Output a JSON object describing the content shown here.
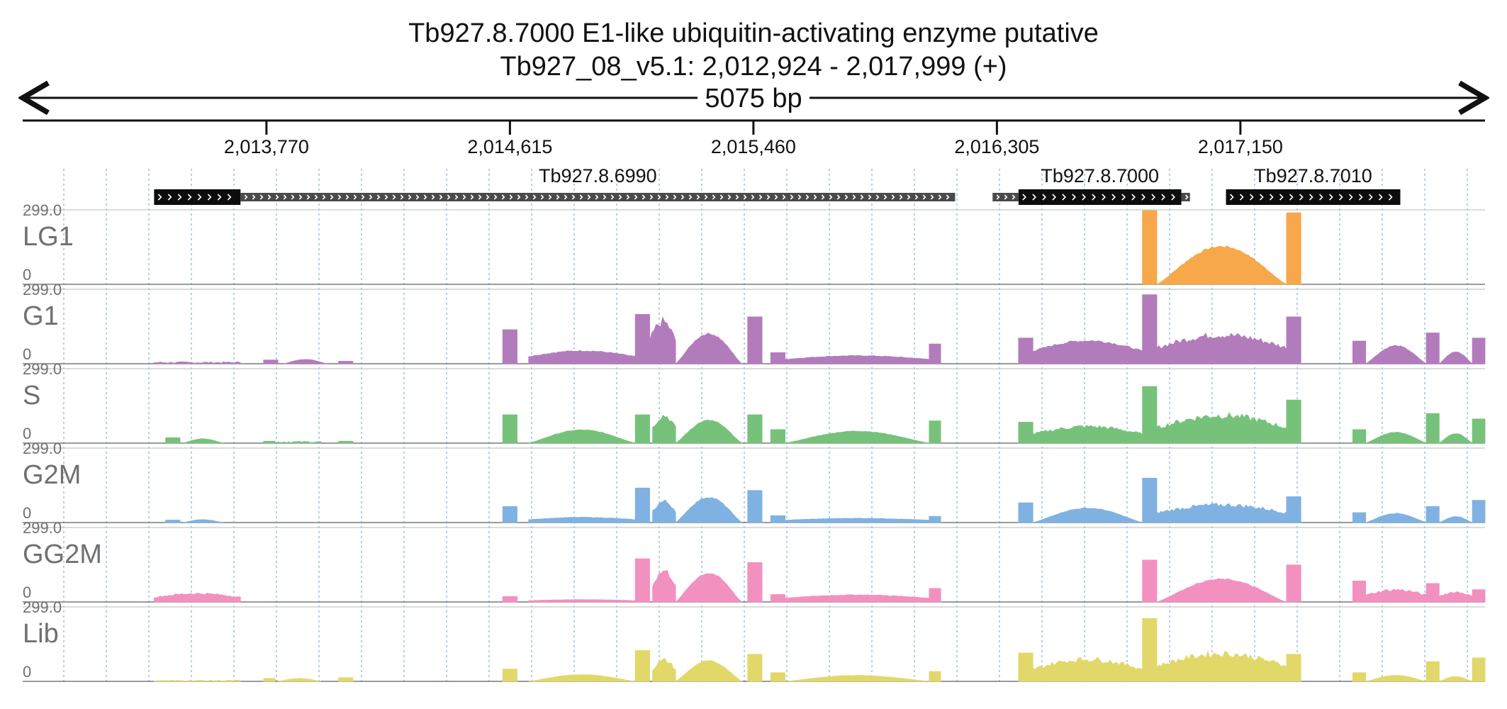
{
  "title_line1": "Tb927.8.7000  E1-like ubiquitin-activating enzyme  putative",
  "title_line2": "Tb927_08_v5.1: 2,012,924 - 2,017,999 (+)",
  "span_label": "5075 bp",
  "chart_data": {
    "type": "area",
    "chromosome": "Tb927_08_v5.1",
    "region_start": 2012924,
    "region_end": 2017999,
    "strand": "+",
    "xlim": [
      2012924,
      2017999
    ],
    "ylim": [
      0,
      299.0
    ],
    "y_max_label": "299.0",
    "y_min_label": "0",
    "x_ticks": [
      2013770,
      2014615,
      2015460,
      2016305,
      2017150
    ],
    "x_tick_labels": [
      "2,013,770",
      "2,014,615",
      "2,015,460",
      "2,016,305",
      "2,017,150"
    ],
    "grid": "vertical dotted lines",
    "genes": [
      {
        "name": "",
        "start": 2013380,
        "end": 2013680,
        "strand": "+",
        "feature": "cds"
      },
      {
        "name": "Tb927.8.6990",
        "start": 2013680,
        "end": 2016160,
        "strand": "+",
        "feature": "utr"
      },
      {
        "name": "Tb927.8.7000",
        "start": 2016290,
        "end": 2016380,
        "strand": "+",
        "feature": "utr"
      },
      {
        "name": "Tb927.8.7000",
        "start": 2016380,
        "end": 2016945,
        "strand": "+",
        "feature": "cds",
        "label": true
      },
      {
        "name": "",
        "start": 2016945,
        "end": 2016975,
        "strand": "+",
        "feature": "utr"
      },
      {
        "name": "Tb927.8.7010",
        "start": 2017100,
        "end": 2017705,
        "strand": "+",
        "feature": "cds",
        "label": true
      }
    ],
    "tracks": [
      {
        "name": "LG1",
        "color": "#f7a84a",
        "segments": [
          {
            "start": 2016810,
            "end": 2016860,
            "peak": 299,
            "shape": "flat"
          },
          {
            "start": 2016860,
            "end": 2017310,
            "peak": 158,
            "shape": "hump"
          },
          {
            "start": 2017310,
            "end": 2017360,
            "peak": 290,
            "shape": "flat"
          }
        ]
      },
      {
        "name": "G1",
        "color": "#b27cbc",
        "segments": [
          {
            "start": 2013380,
            "end": 2013680,
            "peak": 8,
            "shape": "noise"
          },
          {
            "start": 2013760,
            "end": 2013810,
            "peak": 15,
            "shape": "flat"
          },
          {
            "start": 2013830,
            "end": 2013980,
            "peak": 18,
            "shape": "hump"
          },
          {
            "start": 2014020,
            "end": 2014070,
            "peak": 10,
            "shape": "flat"
          },
          {
            "start": 2014590,
            "end": 2014640,
            "peak": 138,
            "shape": "flat"
          },
          {
            "start": 2014680,
            "end": 2015050,
            "peak": 55,
            "shape": "plateau"
          },
          {
            "start": 2015050,
            "end": 2015100,
            "peak": 200,
            "shape": "flat"
          },
          {
            "start": 2015100,
            "end": 2015190,
            "peak": 190,
            "shape": "ragged"
          },
          {
            "start": 2015190,
            "end": 2015420,
            "peak": 125,
            "shape": "hump"
          },
          {
            "start": 2015440,
            "end": 2015490,
            "peak": 190,
            "shape": "flat"
          },
          {
            "start": 2015520,
            "end": 2015570,
            "peak": 45,
            "shape": "flat"
          },
          {
            "start": 2015570,
            "end": 2016070,
            "peak": 34,
            "shape": "plateau"
          },
          {
            "start": 2016070,
            "end": 2016110,
            "peak": 80,
            "shape": "flat"
          },
          {
            "start": 2016380,
            "end": 2016430,
            "peak": 104,
            "shape": "flat"
          },
          {
            "start": 2016430,
            "end": 2016810,
            "peak": 98,
            "shape": "plateau"
          },
          {
            "start": 2016810,
            "end": 2016860,
            "peak": 280,
            "shape": "flat"
          },
          {
            "start": 2016860,
            "end": 2017310,
            "peak": 130,
            "shape": "ragged"
          },
          {
            "start": 2017310,
            "end": 2017360,
            "peak": 190,
            "shape": "flat"
          },
          {
            "start": 2017540,
            "end": 2017585,
            "peak": 92,
            "shape": "flat"
          },
          {
            "start": 2017585,
            "end": 2017795,
            "peak": 75,
            "shape": "hump"
          },
          {
            "start": 2017795,
            "end": 2017840,
            "peak": 125,
            "shape": "flat"
          },
          {
            "start": 2017840,
            "end": 2017955,
            "peak": 50,
            "shape": "hump"
          },
          {
            "start": 2017955,
            "end": 2017999,
            "peak": 104,
            "shape": "flat"
          }
        ]
      },
      {
        "name": "S",
        "color": "#77c27a",
        "segments": [
          {
            "start": 2013420,
            "end": 2013470,
            "peak": 22,
            "shape": "flat"
          },
          {
            "start": 2013480,
            "end": 2013620,
            "peak": 18,
            "shape": "hump"
          },
          {
            "start": 2013760,
            "end": 2013800,
            "peak": 8,
            "shape": "flat"
          },
          {
            "start": 2013810,
            "end": 2013960,
            "peak": 8,
            "shape": "noise"
          },
          {
            "start": 2014020,
            "end": 2014070,
            "peak": 8,
            "shape": "flat"
          },
          {
            "start": 2014590,
            "end": 2014640,
            "peak": 115,
            "shape": "flat"
          },
          {
            "start": 2014680,
            "end": 2015050,
            "peak": 55,
            "shape": "hump"
          },
          {
            "start": 2015050,
            "end": 2015100,
            "peak": 115,
            "shape": "flat"
          },
          {
            "start": 2015110,
            "end": 2015190,
            "peak": 125,
            "shape": "ragged"
          },
          {
            "start": 2015190,
            "end": 2015420,
            "peak": 95,
            "shape": "hump"
          },
          {
            "start": 2015440,
            "end": 2015490,
            "peak": 115,
            "shape": "flat"
          },
          {
            "start": 2015520,
            "end": 2015570,
            "peak": 55,
            "shape": "flat"
          },
          {
            "start": 2015570,
            "end": 2016070,
            "peak": 50,
            "shape": "hump"
          },
          {
            "start": 2016070,
            "end": 2016110,
            "peak": 90,
            "shape": "flat"
          },
          {
            "start": 2016380,
            "end": 2016430,
            "peak": 85,
            "shape": "flat"
          },
          {
            "start": 2016430,
            "end": 2016810,
            "peak": 75,
            "shape": "ragged"
          },
          {
            "start": 2016810,
            "end": 2016860,
            "peak": 230,
            "shape": "flat"
          },
          {
            "start": 2016860,
            "end": 2017310,
            "peak": 125,
            "shape": "ragged"
          },
          {
            "start": 2017310,
            "end": 2017360,
            "peak": 175,
            "shape": "flat"
          },
          {
            "start": 2017540,
            "end": 2017585,
            "peak": 55,
            "shape": "flat"
          },
          {
            "start": 2017585,
            "end": 2017795,
            "peak": 45,
            "shape": "hump"
          },
          {
            "start": 2017795,
            "end": 2017840,
            "peak": 120,
            "shape": "flat"
          },
          {
            "start": 2017840,
            "end": 2017955,
            "peak": 40,
            "shape": "hump"
          },
          {
            "start": 2017955,
            "end": 2017999,
            "peak": 98,
            "shape": "flat"
          }
        ]
      },
      {
        "name": "G2M",
        "color": "#7fb2e2",
        "segments": [
          {
            "start": 2013420,
            "end": 2013470,
            "peak": 10,
            "shape": "flat"
          },
          {
            "start": 2013480,
            "end": 2013620,
            "peak": 12,
            "shape": "hump"
          },
          {
            "start": 2014590,
            "end": 2014640,
            "peak": 65,
            "shape": "flat"
          },
          {
            "start": 2014680,
            "end": 2015050,
            "peak": 22,
            "shape": "plateau"
          },
          {
            "start": 2015050,
            "end": 2015100,
            "peak": 140,
            "shape": "flat"
          },
          {
            "start": 2015110,
            "end": 2015190,
            "peak": 95,
            "shape": "ragged"
          },
          {
            "start": 2015190,
            "end": 2015420,
            "peak": 105,
            "shape": "hump"
          },
          {
            "start": 2015440,
            "end": 2015490,
            "peak": 130,
            "shape": "flat"
          },
          {
            "start": 2015520,
            "end": 2015570,
            "peak": 28,
            "shape": "flat"
          },
          {
            "start": 2015570,
            "end": 2016070,
            "peak": 18,
            "shape": "plateau"
          },
          {
            "start": 2016070,
            "end": 2016110,
            "peak": 25,
            "shape": "flat"
          },
          {
            "start": 2016380,
            "end": 2016430,
            "peak": 80,
            "shape": "flat"
          },
          {
            "start": 2016430,
            "end": 2016810,
            "peak": 60,
            "shape": "hump"
          },
          {
            "start": 2016810,
            "end": 2016860,
            "peak": 180,
            "shape": "flat"
          },
          {
            "start": 2016860,
            "end": 2017310,
            "peak": 80,
            "shape": "ragged"
          },
          {
            "start": 2017310,
            "end": 2017360,
            "peak": 105,
            "shape": "flat"
          },
          {
            "start": 2017540,
            "end": 2017585,
            "peak": 40,
            "shape": "flat"
          },
          {
            "start": 2017585,
            "end": 2017795,
            "peak": 38,
            "shape": "hump"
          },
          {
            "start": 2017795,
            "end": 2017840,
            "peak": 65,
            "shape": "flat"
          },
          {
            "start": 2017840,
            "end": 2017955,
            "peak": 25,
            "shape": "hump"
          },
          {
            "start": 2017955,
            "end": 2017999,
            "peak": 90,
            "shape": "flat"
          }
        ]
      },
      {
        "name": "GG2M",
        "color": "#f291bf",
        "segments": [
          {
            "start": 2013380,
            "end": 2013680,
            "peak": 38,
            "shape": "ragged"
          },
          {
            "start": 2014590,
            "end": 2014640,
            "peak": 22,
            "shape": "flat"
          },
          {
            "start": 2014680,
            "end": 2015050,
            "peak": 10,
            "shape": "plateau"
          },
          {
            "start": 2015050,
            "end": 2015100,
            "peak": 175,
            "shape": "flat"
          },
          {
            "start": 2015110,
            "end": 2015190,
            "peak": 140,
            "shape": "ragged"
          },
          {
            "start": 2015190,
            "end": 2015420,
            "peak": 120,
            "shape": "hump"
          },
          {
            "start": 2015440,
            "end": 2015490,
            "peak": 160,
            "shape": "flat"
          },
          {
            "start": 2015520,
            "end": 2015570,
            "peak": 30,
            "shape": "flat"
          },
          {
            "start": 2015570,
            "end": 2016070,
            "peak": 30,
            "shape": "plateau"
          },
          {
            "start": 2016070,
            "end": 2016110,
            "peak": 55,
            "shape": "flat"
          },
          {
            "start": 2016810,
            "end": 2016860,
            "peak": 170,
            "shape": "flat"
          },
          {
            "start": 2016860,
            "end": 2017310,
            "peak": 95,
            "shape": "hump"
          },
          {
            "start": 2017310,
            "end": 2017360,
            "peak": 150,
            "shape": "flat"
          },
          {
            "start": 2017540,
            "end": 2017585,
            "peak": 85,
            "shape": "flat"
          },
          {
            "start": 2017585,
            "end": 2017795,
            "peak": 55,
            "shape": "ragged"
          },
          {
            "start": 2017795,
            "end": 2017840,
            "peak": 75,
            "shape": "flat"
          },
          {
            "start": 2017840,
            "end": 2017955,
            "peak": 45,
            "shape": "ragged"
          },
          {
            "start": 2017955,
            "end": 2017999,
            "peak": 50,
            "shape": "flat"
          }
        ]
      },
      {
        "name": "Lib",
        "color": "#e2d86a",
        "segments": [
          {
            "start": 2013380,
            "end": 2013680,
            "peak": 5,
            "shape": "noise"
          },
          {
            "start": 2013760,
            "end": 2013800,
            "peak": 12,
            "shape": "flat"
          },
          {
            "start": 2013810,
            "end": 2013960,
            "peak": 12,
            "shape": "hump"
          },
          {
            "start": 2014020,
            "end": 2014070,
            "peak": 15,
            "shape": "flat"
          },
          {
            "start": 2014590,
            "end": 2014640,
            "peak": 50,
            "shape": "flat"
          },
          {
            "start": 2014680,
            "end": 2015050,
            "peak": 28,
            "shape": "hump"
          },
          {
            "start": 2015050,
            "end": 2015100,
            "peak": 125,
            "shape": "flat"
          },
          {
            "start": 2015110,
            "end": 2015190,
            "peak": 95,
            "shape": "ragged"
          },
          {
            "start": 2015190,
            "end": 2015420,
            "peak": 85,
            "shape": "hump"
          },
          {
            "start": 2015440,
            "end": 2015490,
            "peak": 110,
            "shape": "flat"
          },
          {
            "start": 2015520,
            "end": 2015570,
            "peak": 35,
            "shape": "flat"
          },
          {
            "start": 2015570,
            "end": 2016070,
            "peak": 25,
            "shape": "hump"
          },
          {
            "start": 2016070,
            "end": 2016110,
            "peak": 40,
            "shape": "flat"
          },
          {
            "start": 2016380,
            "end": 2016430,
            "peak": 115,
            "shape": "flat"
          },
          {
            "start": 2016430,
            "end": 2016810,
            "peak": 100,
            "shape": "ragged"
          },
          {
            "start": 2016810,
            "end": 2016860,
            "peak": 255,
            "shape": "flat"
          },
          {
            "start": 2016860,
            "end": 2017310,
            "peak": 125,
            "shape": "ragged"
          },
          {
            "start": 2017310,
            "end": 2017360,
            "peak": 110,
            "shape": "flat"
          },
          {
            "start": 2017540,
            "end": 2017585,
            "peak": 35,
            "shape": "flat"
          },
          {
            "start": 2017585,
            "end": 2017795,
            "peak": 25,
            "shape": "hump"
          },
          {
            "start": 2017795,
            "end": 2017840,
            "peak": 80,
            "shape": "flat"
          },
          {
            "start": 2017840,
            "end": 2017955,
            "peak": 20,
            "shape": "hump"
          },
          {
            "start": 2017955,
            "end": 2017999,
            "peak": 95,
            "shape": "flat"
          }
        ]
      }
    ]
  }
}
